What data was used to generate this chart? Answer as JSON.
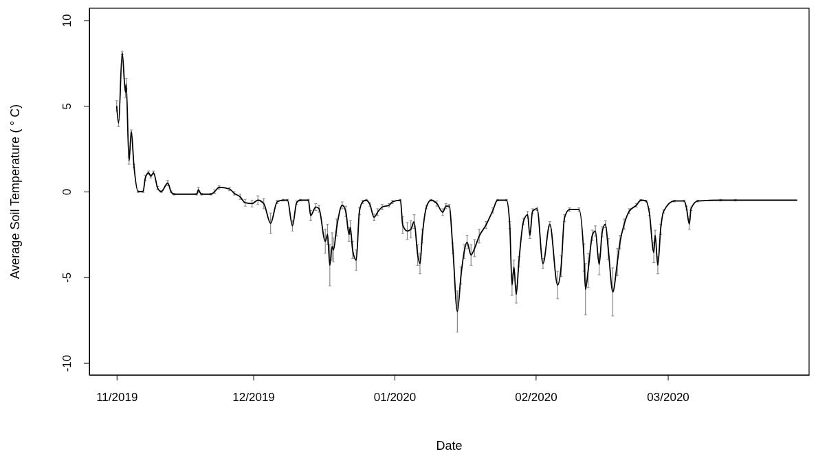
{
  "chart_data": {
    "type": "line",
    "xlabel": "Date",
    "ylabel": "Average Soil Temperature  ( ° C)",
    "xlim": [
      "2019-10-26",
      "2020-04-01"
    ],
    "ylim": [
      -10.7,
      10.7
    ],
    "xticks": [
      {
        "value": "2019-11-01",
        "label": "11/2019"
      },
      {
        "value": "2019-12-01",
        "label": "12/2019"
      },
      {
        "value": "2020-01-01",
        "label": "01/2020"
      },
      {
        "value": "2020-02-01",
        "label": "02/2020"
      },
      {
        "value": "2020-03-01",
        "label": "03/2020"
      }
    ],
    "yticks": [
      -10,
      -5,
      0,
      5,
      10
    ],
    "series": [
      {
        "color": "#000000",
        "x": [
          "2019-11-01T00:00",
          "2019-11-01T10:00",
          "2019-11-02T05:00",
          "2019-11-02T22:00",
          "2019-11-03T02:00",
          "2019-11-03T17:00",
          "2019-11-04T05:00",
          "2019-11-04T19:00",
          "2019-11-05T17:00",
          "2019-11-06T19:00",
          "2019-11-07T07:00",
          "2019-11-08T00:00",
          "2019-11-08T12:00",
          "2019-11-09T02:00",
          "2019-11-10T00:00",
          "2019-11-10T19:00",
          "2019-11-12T05:00",
          "2019-11-12T22:00",
          "2019-11-13T14:00",
          "2019-11-18T14:00",
          "2019-11-18T22:00",
          "2019-11-19T14:00",
          "2019-11-21T17:00",
          "2019-11-22T12:00",
          "2019-11-23T12:00",
          "2019-11-25T19:00",
          "2019-11-26T19:00",
          "2019-11-28T02:00",
          "2019-11-29T05:00",
          "2019-11-30T17:00",
          "2019-12-02T00:00",
          "2019-12-03T07:00",
          "2019-12-04T19:00",
          "2019-12-06T05:00",
          "2019-12-07T12:00",
          "2019-12-08T12:00",
          "2019-12-09T14:00",
          "2019-12-10T12:00",
          "2019-12-11T07:00",
          "2019-12-13T02:00",
          "2019-12-13T14:00",
          "2019-12-14T17:00",
          "2019-12-15T10:00",
          "2019-12-16T19:00",
          "2019-12-17T07:00",
          "2019-12-17T19:00",
          "2019-12-18T07:00",
          "2019-12-18T14:00",
          "2019-12-19T07:00",
          "2019-12-20T12:00",
          "2019-12-21T07:00",
          "2019-12-22T00:00",
          "2019-12-22T07:00",
          "2019-12-22T19:00",
          "2019-12-23T14:00",
          "2019-12-24T07:00",
          "2019-12-25T00:00",
          "2019-12-25T19:00",
          "2019-12-26T14:00",
          "2019-12-27T12:00",
          "2019-12-28T07:00",
          "2019-12-29T07:00",
          "2019-12-30T19:00",
          "2019-12-31T12:00",
          "2020-01-02T07:00",
          "2020-01-02T19:00",
          "2020-01-03T19:00",
          "2020-01-04T14:00",
          "2020-01-05T07:00",
          "2020-01-06T02:00",
          "2020-01-06T14:00",
          "2020-01-07T02:00",
          "2020-01-08T00:00",
          "2020-01-09T00:00",
          "2020-01-10T07:00",
          "2020-01-11T14:00",
          "2020-01-12T07:00",
          "2020-01-13T00:00",
          "2020-01-13T19:00",
          "2020-01-14T19:00",
          "2020-01-15T14:00",
          "2020-01-16T07:00",
          "2020-01-16T22:00",
          "2020-01-17T19:00",
          "2020-01-18T14:00",
          "2020-01-19T14:00",
          "2020-01-21T02:00",
          "2020-01-22T14:00",
          "2020-01-23T14:00",
          "2020-01-25T14:00",
          "2020-01-26T07:00",
          "2020-01-26T19:00",
          "2020-01-27T05:00",
          "2020-01-27T17:00",
          "2020-01-28T07:00",
          "2020-01-29T07:00",
          "2020-01-30T05:00",
          "2020-01-30T17:00",
          "2020-01-31T07:00",
          "2020-02-01T07:00",
          "2020-02-02T14:00",
          "2020-02-04T02:00",
          "2020-02-05T19:00",
          "2020-02-06T14:00",
          "2020-02-07T07:00",
          "2020-02-08T10:00",
          "2020-02-10T12:00",
          "2020-02-11T14:00",
          "2020-02-11T22:00",
          "2020-02-12T12:00",
          "2020-02-13T10:00",
          "2020-02-14T02:00",
          "2020-02-14T22:00",
          "2020-02-15T14:00",
          "2020-02-16T07:00",
          "2020-02-16T22:00",
          "2020-02-17T22:00",
          "2020-02-18T22:00",
          "2020-02-19T12:00",
          "2020-02-20T10:00",
          "2020-02-21T12:00",
          "2020-02-23T02:00",
          "2020-02-24T02:00",
          "2020-02-25T05:00",
          "2020-02-25T22:00",
          "2020-02-26T22:00",
          "2020-02-27T05:00",
          "2020-02-27T19:00",
          "2020-02-28T10:00",
          "2020-02-29T02:00",
          "2020-03-02T10:00",
          "2020-03-04T14:00",
          "2020-03-05T02:00",
          "2020-03-05T17:00",
          "2020-03-06T02:00",
          "2020-03-07T14:00",
          "2020-03-12T14:00",
          "2020-03-15T19:00",
          "2020-03-29T10:00"
        ],
        "values": [
          5.0,
          4.0,
          8.1,
          5.8,
          6.3,
          1.8,
          3.5,
          1.5,
          0.0,
          0.0,
          0.8,
          1.1,
          0.9,
          1.1,
          0.2,
          0.0,
          0.5,
          0.0,
          -0.15,
          -0.15,
          0.1,
          -0.15,
          -0.15,
          0.0,
          0.25,
          0.15,
          -0.1,
          -0.3,
          -0.65,
          -0.7,
          -0.5,
          -0.7,
          -1.85,
          -0.6,
          -0.5,
          -0.5,
          -2.0,
          -0.65,
          -0.5,
          -0.5,
          -1.4,
          -0.9,
          -1.0,
          -2.9,
          -2.5,
          -4.3,
          -3.2,
          -3.4,
          -2.1,
          -0.8,
          -1.15,
          -2.5,
          -2.1,
          -3.4,
          -4.0,
          -1.15,
          -0.6,
          -0.5,
          -0.75,
          -1.5,
          -1.2,
          -0.9,
          -0.8,
          -0.6,
          -0.5,
          -1.95,
          -2.3,
          -2.2,
          -1.75,
          -3.7,
          -4.2,
          -2.6,
          -0.9,
          -0.5,
          -0.7,
          -1.2,
          -0.85,
          -0.85,
          -3.3,
          -7.0,
          -4.9,
          -3.5,
          -2.95,
          -3.7,
          -3.3,
          -2.6,
          -1.95,
          -1.1,
          -0.5,
          -0.5,
          -1.95,
          -5.45,
          -4.4,
          -6.0,
          -4.1,
          -1.75,
          -1.35,
          -2.55,
          -1.15,
          -1.0,
          -4.2,
          -1.9,
          -5.45,
          -4.35,
          -1.55,
          -1.05,
          -1.05,
          -3.85,
          -5.7,
          -4.6,
          -2.55,
          -2.3,
          -4.25,
          -2.35,
          -1.9,
          -3.35,
          -5.85,
          -4.1,
          -2.95,
          -1.9,
          -1.15,
          -0.8,
          -0.5,
          -0.55,
          -1.2,
          -3.55,
          -2.55,
          -4.3,
          -2.2,
          -1.15,
          -0.55,
          -0.55,
          -0.95,
          -1.9,
          -1.0,
          -0.55,
          -0.5,
          -0.5,
          -0.5
        ],
        "errors": [
          0.3,
          0.2,
          0.1,
          0.3,
          0.3,
          0.2,
          0.1,
          0.1,
          0.05,
          0.05,
          0.15,
          0.1,
          0.1,
          0.1,
          0.1,
          0.05,
          0.15,
          0.05,
          0.05,
          0.05,
          0.15,
          0.05,
          0.05,
          0.1,
          0.1,
          0.1,
          0.1,
          0.15,
          0.2,
          0.2,
          0.25,
          0.3,
          0.6,
          0.1,
          0.05,
          0.05,
          0.3,
          0.1,
          0.05,
          0.05,
          0.3,
          0.2,
          0.2,
          0.7,
          0.6,
          1.2,
          0.8,
          0.7,
          0.5,
          0.2,
          0.3,
          0.4,
          0.4,
          0.5,
          0.6,
          0.2,
          0.1,
          0.05,
          0.1,
          0.2,
          0.2,
          0.15,
          0.1,
          0.1,
          0.05,
          0.5,
          0.5,
          0.5,
          0.4,
          0.6,
          0.6,
          0.4,
          0.1,
          0.05,
          0.15,
          0.2,
          0.15,
          0.1,
          0.3,
          1.2,
          0.5,
          0.4,
          0.4,
          0.6,
          0.5,
          0.4,
          0.2,
          0.15,
          0.05,
          0.05,
          0.2,
          0.6,
          0.4,
          0.5,
          0.3,
          0.2,
          0.2,
          0.2,
          0.15,
          0.1,
          0.3,
          0.15,
          0.8,
          0.6,
          0.2,
          0.1,
          0.1,
          0.8,
          1.5,
          1.0,
          0.3,
          0.3,
          0.6,
          0.3,
          0.2,
          0.6,
          1.4,
          0.8,
          0.4,
          0.3,
          0.15,
          0.1,
          0.05,
          0.05,
          0.2,
          0.6,
          0.3,
          0.5,
          0.3,
          0.1,
          0.05,
          0.05,
          0.1,
          0.3,
          0.1,
          0.05,
          0.05,
          0.05,
          null
        ]
      }
    ]
  }
}
